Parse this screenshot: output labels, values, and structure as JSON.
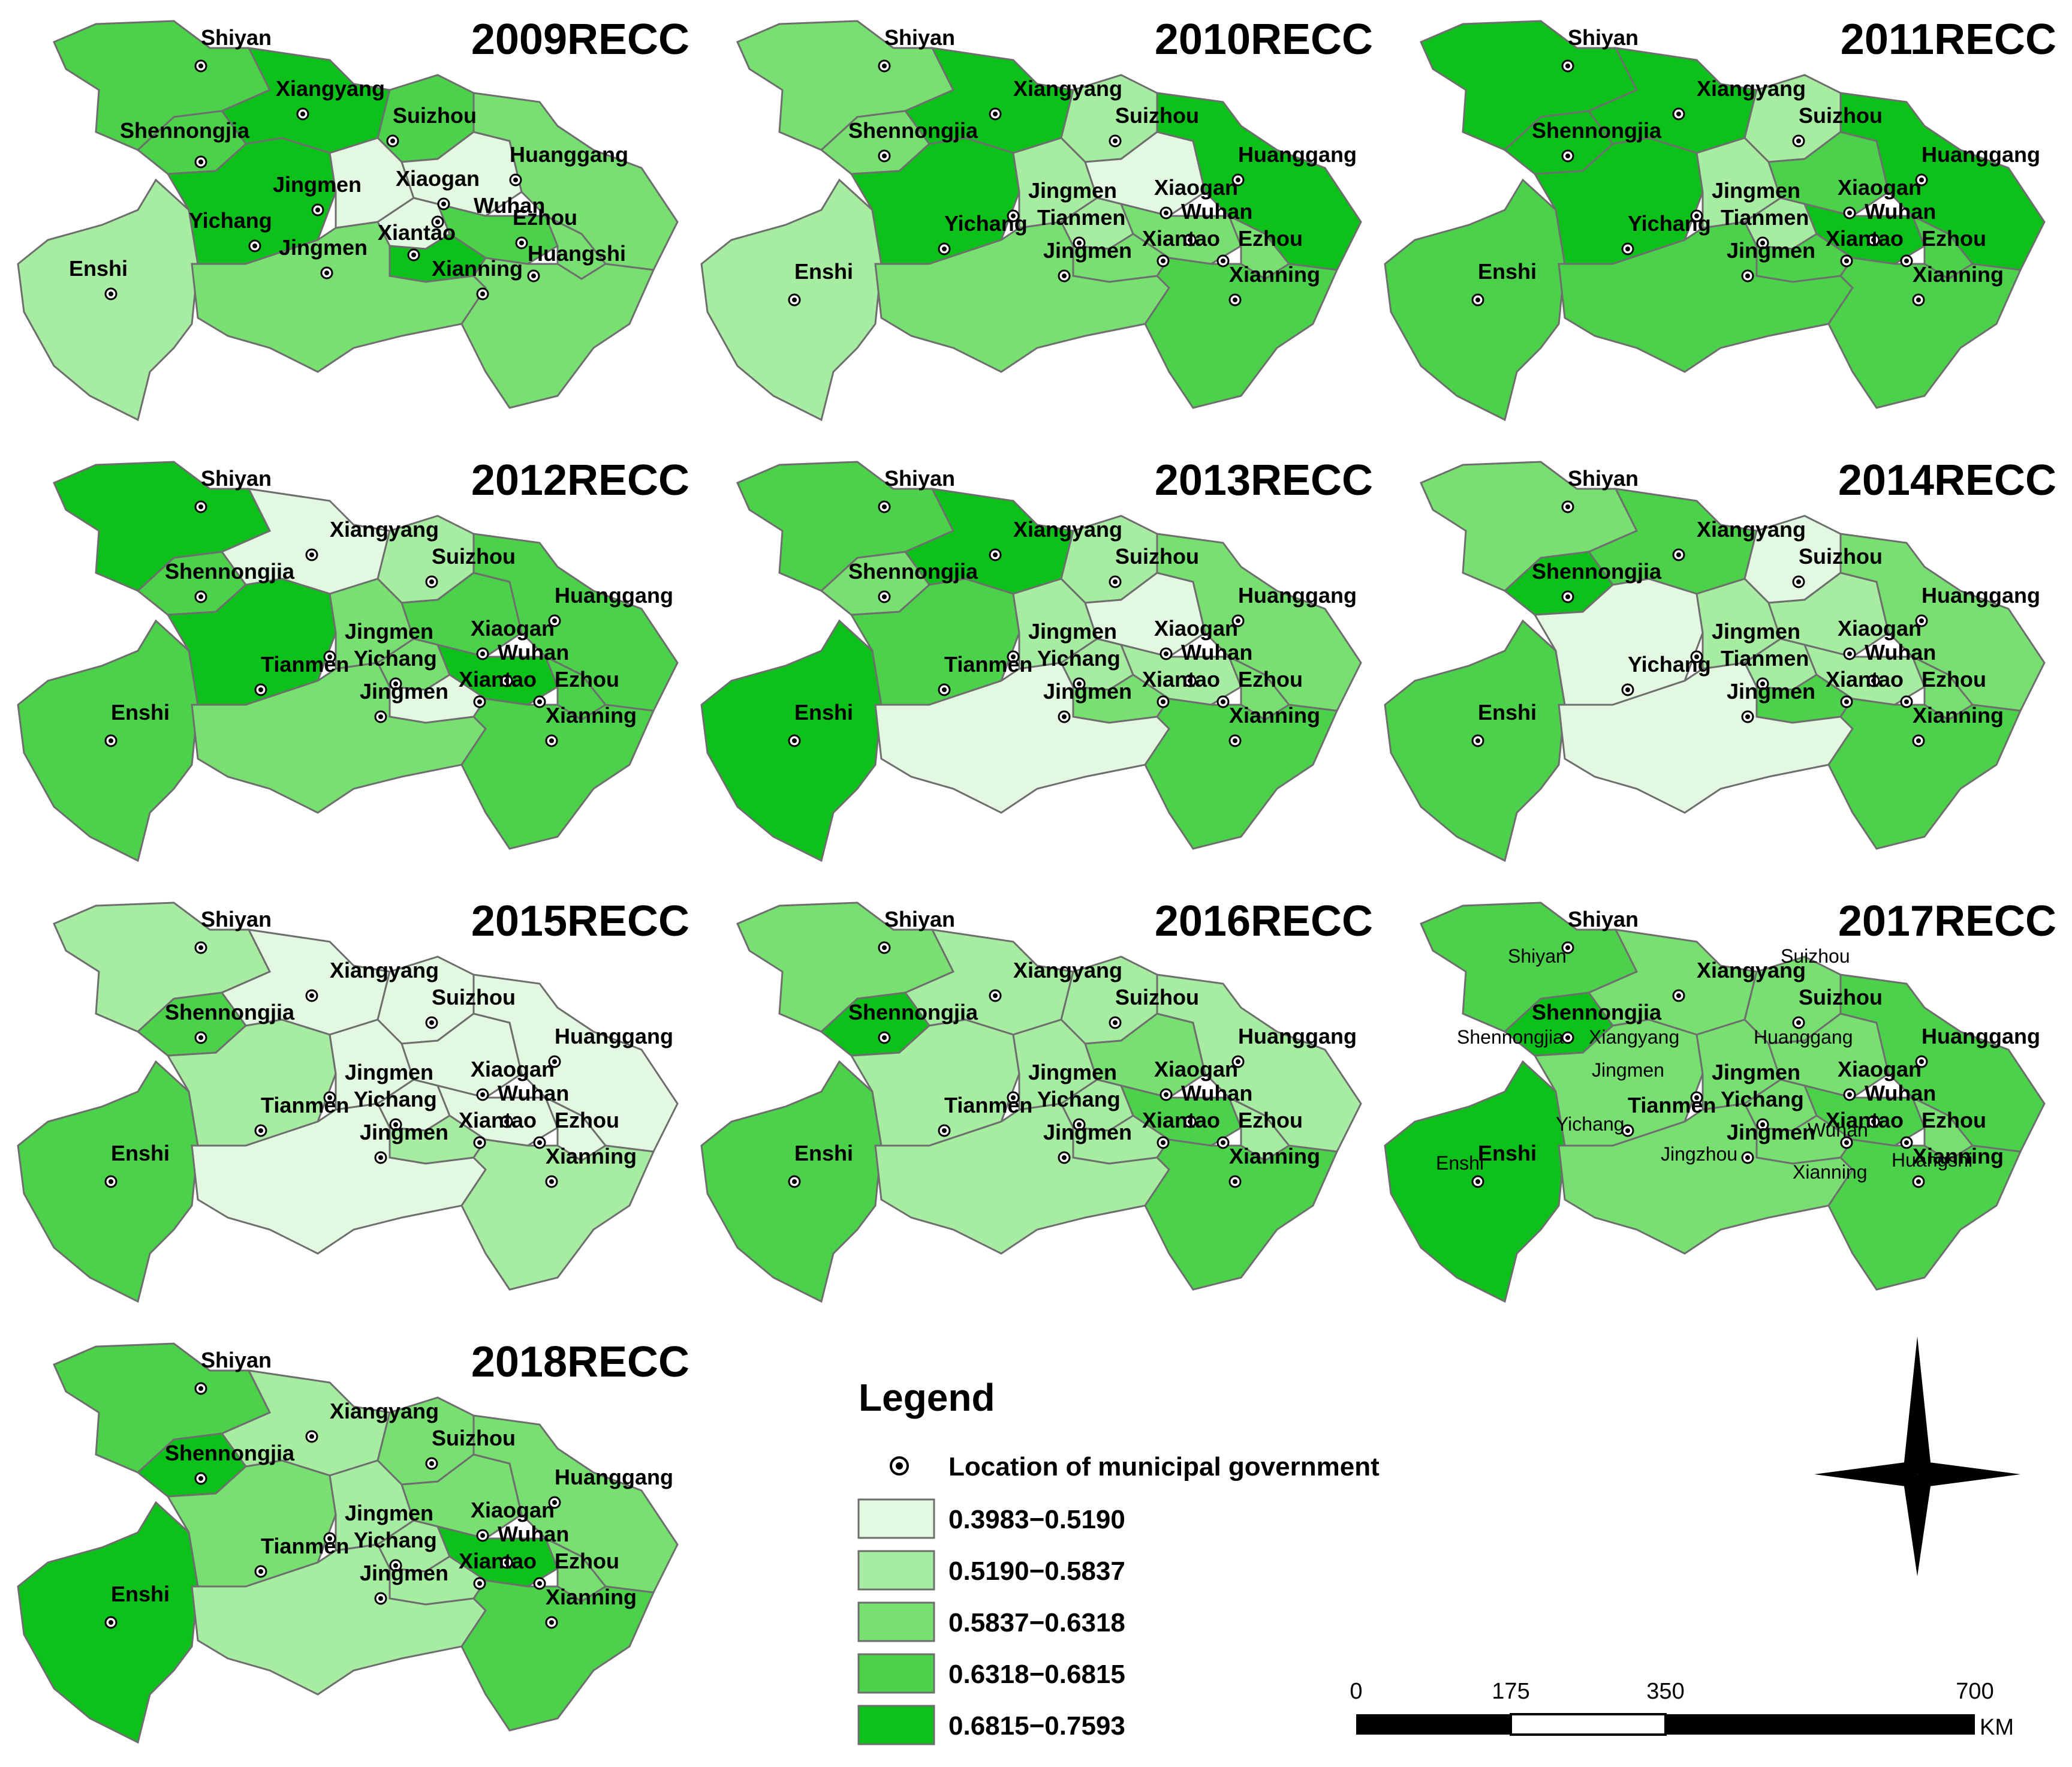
{
  "colors": [
    "#e2f8e0",
    "#a6eca1",
    "#78e071",
    "#4cd14a",
    "#0cc21a"
  ],
  "legend": {
    "title": "Legend",
    "point_label": "Location of municipal government",
    "classes": [
      "0.3983−0.5190",
      "0.5190−0.5837",
      "0.5837−0.6318",
      "0.6318−0.6815",
      "0.6815−0.7593"
    ]
  },
  "scale_bar": {
    "ticks": [
      "0",
      "175",
      "350",
      "700"
    ],
    "unit": "KM"
  },
  "north_arrow": {
    "icon": "compass-rose-icon"
  },
  "panels": [
    {
      "title": "2009RECC",
      "classes": {
        "shiyan": 3,
        "xiangyang": 4,
        "suizhou": 3,
        "shennongjia": 3,
        "yichang": 4,
        "enshi": 1,
        "jingmen": 0,
        "jingzhou": 2,
        "xiaogan": 0,
        "huanggang": 2,
        "wuhan": 3,
        "xiantao": 4,
        "ezhou": 2,
        "xianning": 2,
        "tianmen": 0
      },
      "labels": [
        "Shiyan",
        "Xiangyang",
        "Shennongjia",
        "Suizhou",
        "Huanggang",
        "Jingmen",
        "Xiaogan",
        "Yichang",
        "Wuhan",
        "Ezhou",
        "Xiantao",
        "Jingmen",
        "Huangshi",
        "Enshi",
        "Xianning"
      ],
      "extra_labels": []
    },
    {
      "title": "2010RECC",
      "classes": {
        "shiyan": 2,
        "xiangyang": 4,
        "suizhou": 1,
        "shennongjia": 2,
        "yichang": 4,
        "enshi": 1,
        "jingmen": 1,
        "jingzhou": 2,
        "xiaogan": 0,
        "huanggang": 4,
        "wuhan": 2,
        "xiantao": 2,
        "ezhou": 2,
        "xianning": 3,
        "tianmen": 1
      },
      "labels": [
        "Shiyan",
        "Xiangyang",
        "Shennongjia",
        "Suizhou",
        "Huanggang",
        "Jingmen",
        "Xiaogan",
        "Yichang",
        "Tianmen",
        "Wuhan",
        "Xiantao",
        "Ezhou",
        "Jingmen",
        "Enshi",
        "Xianning"
      ],
      "extra_labels": []
    },
    {
      "title": "2011RECC",
      "classes": {
        "shiyan": 4,
        "xiangyang": 4,
        "suizhou": 1,
        "shennongjia": 4,
        "yichang": 4,
        "enshi": 3,
        "jingmen": 1,
        "jingzhou": 3,
        "xiaogan": 3,
        "huanggang": 4,
        "wuhan": 4,
        "xiantao": 3,
        "ezhou": 3,
        "xianning": 3,
        "tianmen": 1
      },
      "labels": [
        "Shiyan",
        "Xiangyang",
        "Shennongjia",
        "Suizhou",
        "Huanggang",
        "Jingmen",
        "Xiaogan",
        "Yichang",
        "Tianmen",
        "Wuhan",
        "Xiantao",
        "Ezhou",
        "Jingmen",
        "Enshi",
        "Xianning"
      ],
      "extra_labels": []
    },
    {
      "title": "2012RECC",
      "classes": {
        "shiyan": 4,
        "xiangyang": 0,
        "suizhou": 1,
        "shennongjia": 3,
        "yichang": 4,
        "enshi": 3,
        "jingmen": 2,
        "jingzhou": 2,
        "xiaogan": 3,
        "huanggang": 3,
        "wuhan": 4,
        "xiantao": 0,
        "ezhou": 3,
        "xianning": 3,
        "tianmen": 2
      },
      "labels": [
        "Shiyan",
        "Xiangyang",
        "Shennongjia",
        "Suizhou",
        "Huanggang",
        "Jingmen",
        "Xiaogan",
        "Tianmen",
        "Yichang",
        "Wuhan",
        "Xiantao",
        "Ezhou",
        "Jingmen",
        "Enshi",
        "Xianning"
      ],
      "extra_labels": []
    },
    {
      "title": "2013RECC",
      "classes": {
        "shiyan": 3,
        "xiangyang": 4,
        "suizhou": 1,
        "shennongjia": 2,
        "yichang": 3,
        "enshi": 4,
        "jingmen": 1,
        "jingzhou": 0,
        "xiaogan": 0,
        "huanggang": 2,
        "wuhan": 1,
        "xiantao": 2,
        "ezhou": 2,
        "xianning": 3,
        "tianmen": 1
      },
      "labels": [
        "Shiyan",
        "Xiangyang",
        "Shennongjia",
        "Suizhou",
        "Huanggang",
        "Jingmen",
        "Xiaogan",
        "Tianmen",
        "Yichang",
        "Wuhan",
        "Xiantao",
        "Ezhou",
        "Jingmen",
        "Enshi",
        "Xianning"
      ],
      "extra_labels": []
    },
    {
      "title": "2014RECC",
      "classes": {
        "shiyan": 2,
        "xiangyang": 3,
        "suizhou": 0,
        "shennongjia": 4,
        "yichang": 0,
        "enshi": 3,
        "jingmen": 1,
        "jingzhou": 0,
        "xiaogan": 1,
        "huanggang": 2,
        "wuhan": 1,
        "xiantao": 3,
        "ezhou": 2,
        "xianning": 3,
        "tianmen": 1
      },
      "labels": [
        "Shiyan",
        "Xiangyang",
        "Shennongjia",
        "Suizhou",
        "Huanggang",
        "Jingmen",
        "Xiaogan",
        "Yichang",
        "Tianmen",
        "Wuhan",
        "Xiantao",
        "Ezhou",
        "Jingmen",
        "Enshi",
        "Xianning"
      ],
      "extra_labels": []
    },
    {
      "title": "2015RECC",
      "classes": {
        "shiyan": 1,
        "xiangyang": 0,
        "suizhou": 0,
        "shennongjia": 3,
        "yichang": 1,
        "enshi": 3,
        "jingmen": 0,
        "jingzhou": 0,
        "xiaogan": 0,
        "huanggang": 0,
        "wuhan": 0,
        "xiantao": 1,
        "ezhou": 0,
        "xianning": 1,
        "tianmen": 0
      },
      "labels": [
        "Shiyan",
        "Xiangyang",
        "Shennongjia",
        "Suizhou",
        "Huanggang",
        "Jingmen",
        "Xiaogan",
        "Tianmen",
        "Yichang",
        "Wuhan",
        "Xiantao",
        "Ezhou",
        "Jingmen",
        "Enshi",
        "Xianning"
      ],
      "extra_labels": []
    },
    {
      "title": "2016RECC",
      "classes": {
        "shiyan": 2,
        "xiangyang": 1,
        "suizhou": 1,
        "shennongjia": 4,
        "yichang": 1,
        "enshi": 3,
        "jingmen": 1,
        "jingzhou": 1,
        "xiaogan": 2,
        "huanggang": 1,
        "wuhan": 3,
        "xiantao": 1,
        "ezhou": 1,
        "xianning": 3,
        "tianmen": 1
      },
      "labels": [
        "Shiyan",
        "Xiangyang",
        "Shennongjia",
        "Suizhou",
        "Huanggang",
        "Jingmen",
        "Xiaogan",
        "Tianmen",
        "Yichang",
        "Wuhan",
        "Xiantao",
        "Ezhou",
        "Jingmen",
        "Enshi",
        "Xianning"
      ],
      "extra_labels": []
    },
    {
      "title": "2017RECC",
      "classes": {
        "shiyan": 3,
        "xiangyang": 2,
        "suizhou": 2,
        "shennongjia": 4,
        "yichang": 2,
        "enshi": 4,
        "jingmen": 2,
        "jingzhou": 2,
        "xiaogan": 2,
        "huanggang": 3,
        "wuhan": 3,
        "xiantao": 2,
        "ezhou": 2,
        "xianning": 3,
        "tianmen": 2
      },
      "labels": [
        "Shiyan",
        "Xiangyang",
        "Shennongjia",
        "Suizhou",
        "Huanggang",
        "Jingmen",
        "Xiaogan",
        "Tianmen",
        "Yichang",
        "Wuhan",
        "Xiantao",
        "Ezhou",
        "Jingmen",
        "Enshi",
        "Xianning"
      ],
      "extra_labels": [
        "Shiyan",
        "Suizhou",
        "Shennongjia",
        "Xiangyang",
        "Huanggang",
        "Jingmen",
        "Yichang",
        "Wuhan",
        "Jingzhou",
        "Huangshi",
        "Xianning",
        "Enshi"
      ]
    },
    {
      "title": "2018RECC",
      "classes": {
        "shiyan": 3,
        "xiangyang": 1,
        "suizhou": 2,
        "shennongjia": 4,
        "yichang": 2,
        "enshi": 4,
        "jingmen": 1,
        "jingzhou": 1,
        "xiaogan": 2,
        "huanggang": 2,
        "wuhan": 4,
        "xiantao": 1,
        "ezhou": 2,
        "xianning": 3,
        "tianmen": 1
      },
      "labels": [
        "Shiyan",
        "Xiangyang",
        "Shennongjia",
        "Suizhou",
        "Huanggang",
        "Jingmen",
        "Xiaogan",
        "Tianmen",
        "Yichang",
        "Wuhan",
        "Xiantao",
        "Ezhou",
        "Jingmen",
        "Enshi",
        "Xianning"
      ],
      "extra_labels": []
    }
  ]
}
